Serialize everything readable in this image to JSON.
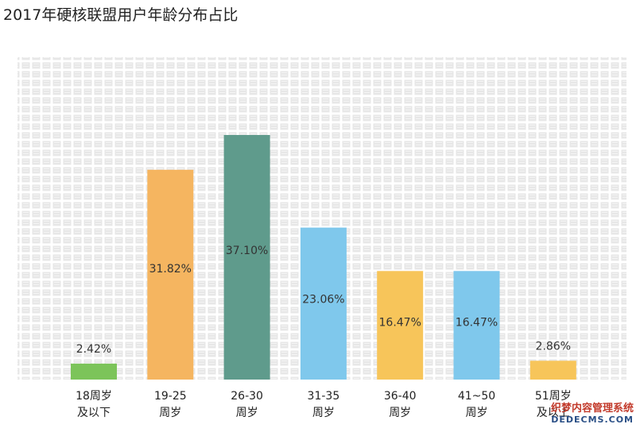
{
  "title": "2017年硬核联盟用户年龄分布占比",
  "chart_data": {
    "type": "bar",
    "title": "2017年硬核联盟用户年龄分布占比",
    "categories": [
      [
        "18周岁",
        "及以下"
      ],
      [
        "19-25",
        "周岁"
      ],
      [
        "26-30",
        "周岁"
      ],
      [
        "31-35",
        "周岁"
      ],
      [
        "36-40",
        "周岁"
      ],
      [
        "41~50",
        "周岁"
      ],
      [
        "51周岁",
        "及以上"
      ]
    ],
    "values": [
      2.42,
      31.82,
      37.1,
      23.06,
      16.47,
      16.47,
      2.86
    ],
    "value_labels": [
      "2.42%",
      "31.82%",
      "37.10%",
      "23.06%",
      "16.47%",
      "16.47%",
      "2.86%"
    ],
    "colors": [
      "#7cc45a",
      "#f5b560",
      "#5f9b8c",
      "#7fc8ec",
      "#f7c55a",
      "#7fc8ec",
      "#f7c55a"
    ],
    "ylim": [
      0,
      37.1
    ],
    "grid": false,
    "legend": "none"
  },
  "watermark": {
    "line1": "织梦内容管理系统",
    "line2": "DEDECMS.COM"
  }
}
